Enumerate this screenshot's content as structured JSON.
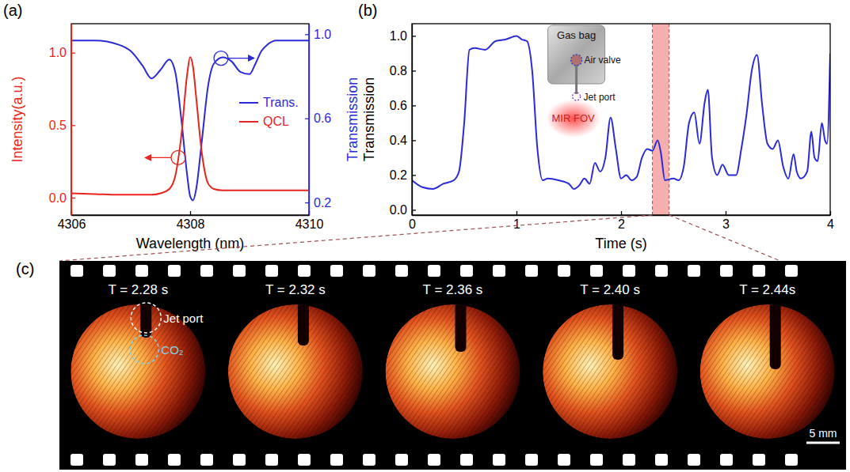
{
  "chart_data": [
    {
      "panel_label": "(a)",
      "type": "line",
      "x_label": "Wavelength (nm)",
      "y_label": "Intensity(a.u.)",
      "y2_label": "Transmission",
      "xlim": [
        4306,
        4310
      ],
      "xticks": [
        4306,
        4308,
        4310
      ],
      "ylim": [
        -0.12,
        1.2
      ],
      "yticks": [
        {
          "value": 0,
          "label": "0.0"
        },
        0.5,
        {
          "value": 1,
          "label": "1.0"
        }
      ],
      "y2lim": [
        0.14,
        1.05
      ],
      "y2ticks": [
        0.2,
        0.6,
        {
          "value": 1,
          "label": "1.0"
        }
      ],
      "grid": false,
      "legend": "right",
      "x": [
        4306,
        4306.4,
        4306.8,
        4307.0,
        4307.2,
        4307.35,
        4307.5,
        4307.65,
        4307.75,
        4307.85,
        4307.95,
        4308.0,
        4308.05,
        4308.1,
        4308.2,
        4308.3,
        4308.4,
        4308.55,
        4308.7,
        4308.85,
        4309.0,
        4309.1,
        4309.2,
        4309.3,
        4309.45,
        4309.6,
        4309.8,
        4310
      ],
      "series": [
        {
          "name": "Trans.",
          "color": "#2a2ad8",
          "axis": "y2",
          "values": [
            0.97,
            0.97,
            0.95,
            0.92,
            0.85,
            0.79,
            0.83,
            0.88,
            0.82,
            0.6,
            0.33,
            0.23,
            0.21,
            0.26,
            0.5,
            0.75,
            0.86,
            0.89,
            0.87,
            0.82,
            0.81,
            0.86,
            0.92,
            0.95,
            0.97,
            0.97,
            0.97,
            0.97
          ]
        },
        {
          "name": "QCL",
          "color": "#e8251d",
          "values": [
            0.03,
            0.025,
            0.02,
            0.02,
            0.02,
            0.02,
            0.03,
            0.06,
            0.15,
            0.42,
            0.85,
            0.97,
            0.9,
            0.7,
            0.3,
            0.1,
            0.06,
            0.05,
            0.05,
            0.05,
            0.05,
            0.05,
            0.05,
            0.05,
            0.05,
            0.05,
            0.05,
            0.05
          ]
        }
      ]
    },
    {
      "panel_label": "(b)",
      "type": "line",
      "x_label": "Time (s)",
      "y_label": "Transmission",
      "xlim": [
        0,
        4
      ],
      "xticks": [
        0,
        1,
        2,
        3,
        4
      ],
      "ylim": [
        -0.03,
        1.07
      ],
      "yticks": [
        {
          "value": 0,
          "label": "0.0"
        },
        0.2,
        0.4,
        0.6,
        0.8,
        {
          "value": 1,
          "label": "1.0"
        }
      ],
      "grid": false,
      "color": "#2a2ad8",
      "x": [
        0,
        0.1,
        0.2,
        0.3,
        0.4,
        0.45,
        0.5,
        0.55,
        0.6,
        0.7,
        0.8,
        0.9,
        1.0,
        1.05,
        1.1,
        1.15,
        1.2,
        1.25,
        1.3,
        1.4,
        1.5,
        1.55,
        1.6,
        1.65,
        1.7,
        1.75,
        1.8,
        1.85,
        1.9,
        1.95,
        2.0,
        2.05,
        2.1,
        2.15,
        2.2,
        2.25,
        2.3,
        2.35,
        2.38,
        2.42,
        2.5,
        2.55,
        2.6,
        2.65,
        2.7,
        2.75,
        2.8,
        2.83,
        2.87,
        2.92,
        2.97,
        3.03,
        3.1,
        3.15,
        3.2,
        3.25,
        3.3,
        3.35,
        3.4,
        3.45,
        3.5,
        3.55,
        3.6,
        3.65,
        3.68,
        3.72,
        3.78,
        3.82,
        3.85,
        3.88,
        3.92,
        3.95,
        3.97,
        4
      ],
      "values": [
        0.17,
        0.13,
        0.12,
        0.15,
        0.17,
        0.22,
        0.5,
        0.92,
        0.93,
        0.92,
        0.97,
        0.98,
        1,
        0.98,
        0.97,
        0.8,
        0.35,
        0.17,
        0.18,
        0.17,
        0.15,
        0.12,
        0.14,
        0.18,
        0.15,
        0.27,
        0.22,
        0.3,
        0.53,
        0.35,
        0.18,
        0.2,
        0.17,
        0.19,
        0.3,
        0.35,
        0.34,
        0.4,
        0.33,
        0.17,
        0.18,
        0.17,
        0.25,
        0.5,
        0.56,
        0.38,
        0.62,
        0.69,
        0.3,
        0.2,
        0.26,
        0.2,
        0.2,
        0.35,
        0.55,
        0.8,
        0.89,
        0.6,
        0.38,
        0.35,
        0.4,
        0.25,
        0.18,
        0.32,
        0.22,
        0.18,
        0.22,
        0.45,
        0.3,
        0.28,
        0.5,
        0.4,
        0.38,
        0.9
      ],
      "highlight": [
        2.3,
        2.46
      ],
      "inset": {
        "gas_bag": "Gas bag",
        "air_valve": "Air valve",
        "jet_port": "Jet port",
        "fov": "MIR FOV"
      }
    }
  ],
  "film_strip": {
    "panel_label": "(c)",
    "frames": [
      "T = 2.28 s",
      "T = 2.32 s",
      "T = 2.36 s",
      "T = 2.40 s",
      "T = 2.44s"
    ],
    "jet_port": "Jet port",
    "gas": "CO₂",
    "scale_bar": "5 mm"
  }
}
